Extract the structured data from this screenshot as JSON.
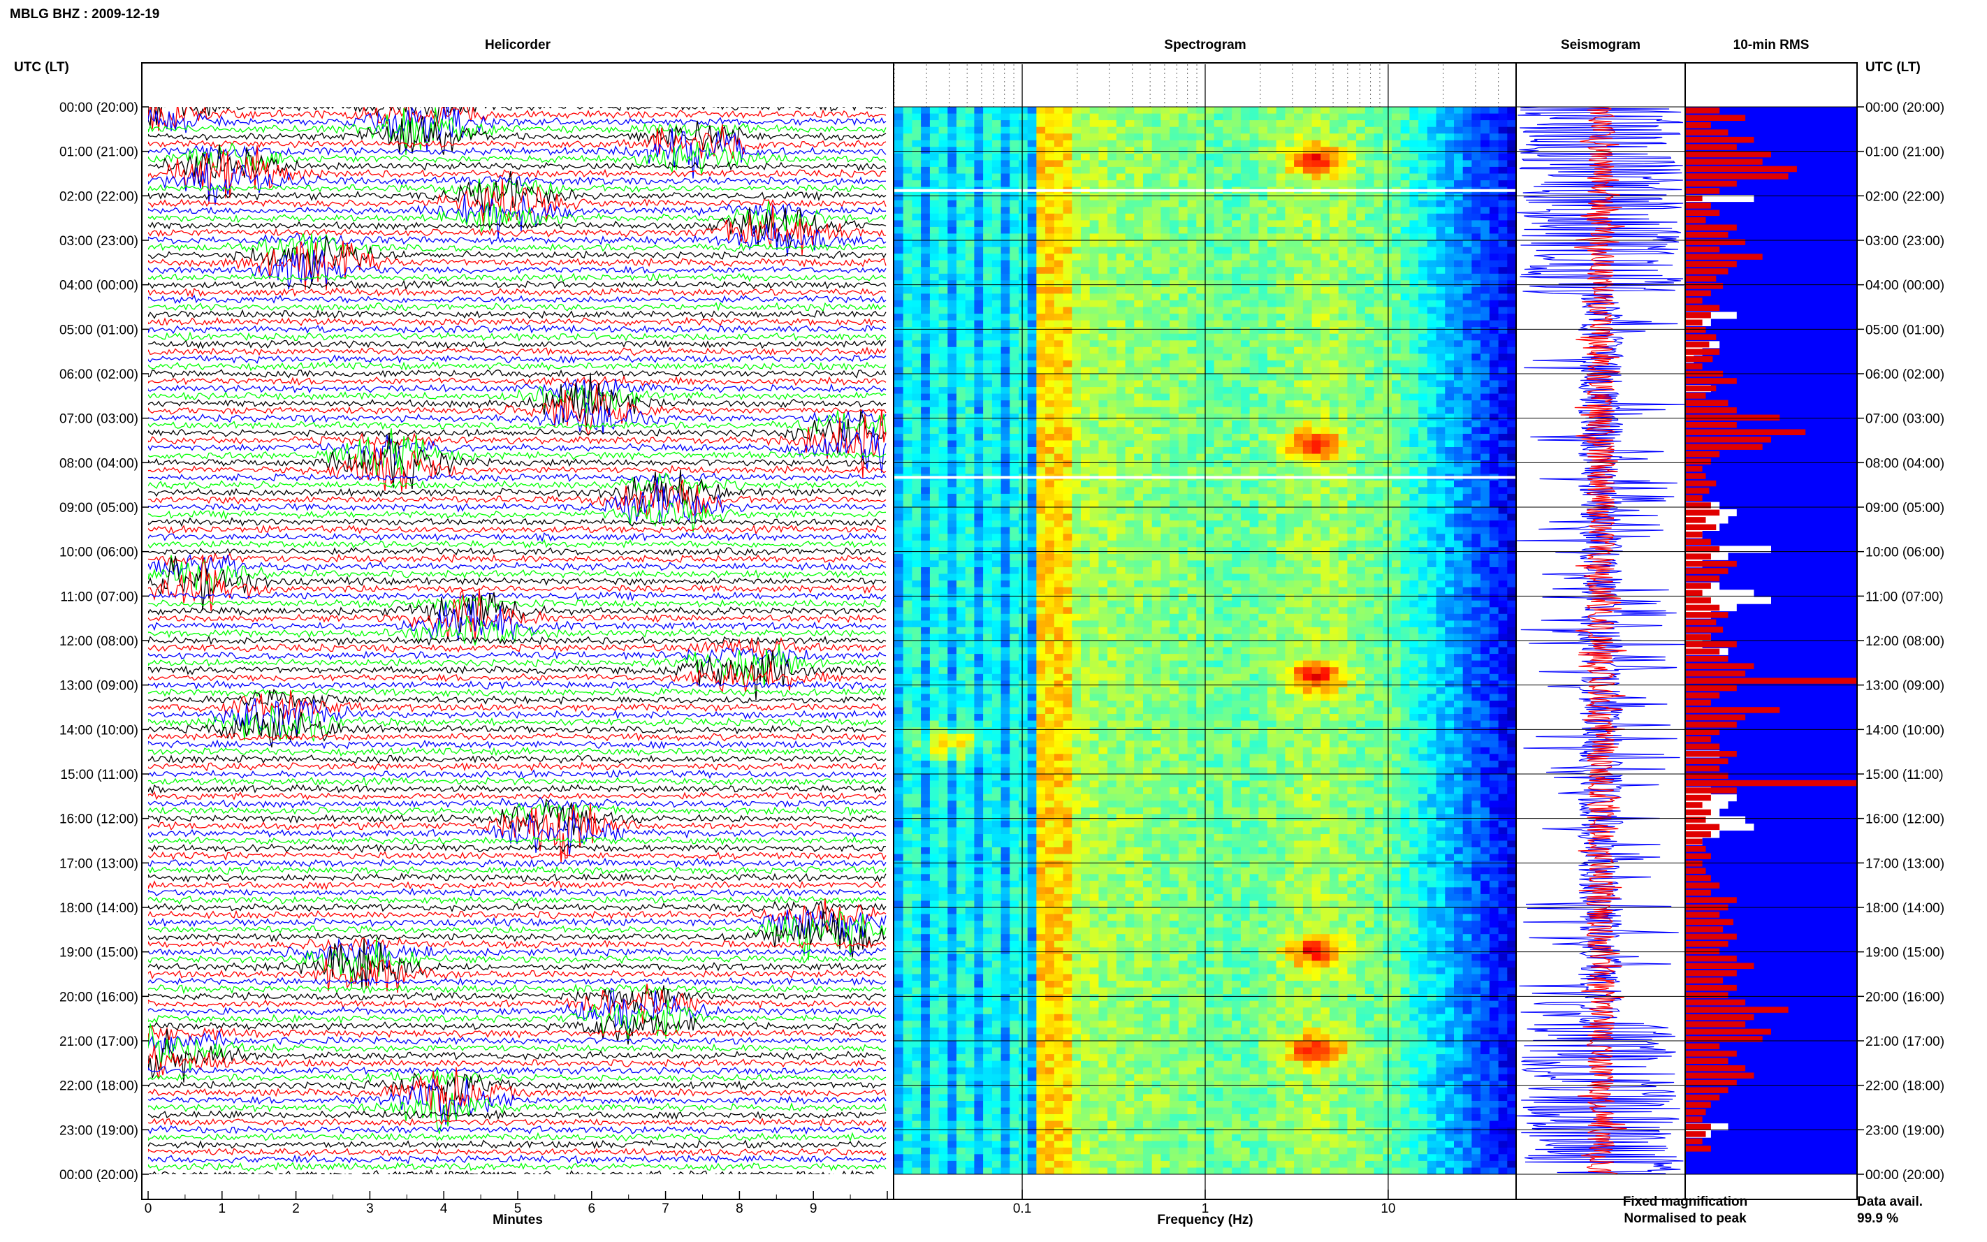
{
  "figure_title": "MBLG BHZ : 2009-12-19",
  "panels": {
    "helicorder": "Helicorder",
    "spectrogram": "Spectrogram",
    "seismogram": "Seismogram",
    "rms": "10-min RMS"
  },
  "left_axis_header": "UTC (LT)",
  "right_axis_header": "UTC (LT)",
  "time_labels": [
    "00:00 (20:00)",
    "01:00 (21:00)",
    "02:00 (22:00)",
    "03:00 (23:00)",
    "04:00 (00:00)",
    "05:00 (01:00)",
    "06:00 (02:00)",
    "07:00 (03:00)",
    "08:00 (04:00)",
    "09:00 (05:00)",
    "10:00 (06:00)",
    "11:00 (07:00)",
    "12:00 (08:00)",
    "13:00 (09:00)",
    "14:00 (10:00)",
    "15:00 (11:00)",
    "16:00 (12:00)",
    "17:00 (13:00)",
    "18:00 (14:00)",
    "19:00 (15:00)",
    "20:00 (16:00)",
    "21:00 (17:00)",
    "22:00 (18:00)",
    "23:00 (19:00)",
    "00:00 (20:00)"
  ],
  "minutes_axis": {
    "label": "Minutes",
    "ticks": [
      "0",
      "1",
      "2",
      "3",
      "4",
      "5",
      "6",
      "7",
      "8",
      "9"
    ]
  },
  "frequency_axis": {
    "label": "Frequency (Hz)",
    "ticks": [
      "0.1",
      "1",
      "10"
    ],
    "scale": "log",
    "range": [
      0.02,
      50
    ]
  },
  "legend": {
    "fixed": "Fixed magnification",
    "normalised": "Normalised to peak",
    "fixed_color": "#0000ff",
    "normalised_color": "#ff0000"
  },
  "data_availability": {
    "label": "Data avail.",
    "value": "99.9 %"
  },
  "colors": {
    "helicorder_traces": [
      "#000000",
      "#ff0000",
      "#0000ff",
      "#00ff00"
    ],
    "rms_fixed": "#0000ff",
    "rms_normalised": "#e00000"
  },
  "chart_data": [
    {
      "type": "heatmap",
      "name": "Helicorder",
      "xlabel": "Minutes",
      "xlim": [
        0,
        10
      ],
      "rows": "10-minute traces, 24 h",
      "event_hours": [
        0.1,
        0.4,
        1.0,
        1.5,
        2.2,
        2.8,
        3.5,
        6.7,
        7.5,
        8.0,
        8.9,
        10.7,
        11.6,
        12.6,
        13.8,
        16.2,
        18.5,
        19.3,
        20.4,
        21.3,
        22.3
      ]
    },
    {
      "type": "heatmap",
      "name": "Spectrogram",
      "xlabel": "Frequency (Hz)",
      "xscale": "log",
      "xlim": [
        0.02,
        50
      ],
      "microseism_peak_hz": 0.14,
      "strong_bands_hz_hours": [
        {
          "hz": 4.0,
          "hour": 1.2
        },
        {
          "hz": 4.0,
          "hour": 7.6
        },
        {
          "hz": 4.0,
          "hour": 12.8
        },
        {
          "hz": 4.0,
          "hour": 19.0
        },
        {
          "hz": 4.0,
          "hour": 21.2
        },
        {
          "hz": 0.04,
          "hour": 14.3
        }
      ]
    },
    {
      "type": "bar",
      "name": "10-min RMS",
      "series": [
        {
          "name": "Fixed magnification",
          "values": [
            1,
            1,
            1,
            1,
            1,
            1,
            1,
            1,
            1,
            1,
            1,
            1,
            0.6,
            1,
            1,
            1,
            1,
            1,
            1,
            1,
            1,
            1,
            1,
            1,
            1,
            1,
            1,
            1,
            0.7,
            0.85,
            1,
            1,
            0.8,
            0.9,
            0.95,
            1,
            1,
            1,
            0.85,
            1,
            1,
            1,
            1,
            1,
            1,
            1,
            1,
            1,
            1,
            1,
            1,
            1,
            1,
            1,
            0.8,
            0.7,
            0.75,
            0.8,
            0.9,
            1,
            0.5,
            0.75,
            0.9,
            1,
            1,
            0.8,
            0.6,
            0.5,
            0.7,
            0.85,
            1,
            1,
            0.85,
            0.9,
            0.75,
            1,
            1,
            1,
            1,
            1,
            1,
            1,
            1,
            1,
            1,
            1,
            1,
            1,
            0.8,
            1,
            1,
            1,
            1,
            0.85,
            0.7,
            0.75,
            0.8,
            0.65,
            0.6,
            0.8,
            0.9,
            1,
            1,
            1,
            1,
            1,
            1,
            1,
            1,
            1,
            1,
            1,
            1,
            1,
            1,
            1,
            1,
            1,
            1,
            1,
            1,
            1,
            1,
            1,
            1,
            1,
            1,
            1,
            1,
            1,
            1,
            1,
            1,
            1,
            1,
            1,
            1,
            1,
            1,
            0.75,
            0.85,
            1,
            1,
            1,
            1,
            1
          ]
        },
        {
          "name": "Normalised to peak",
          "values": [
            0.2,
            0.35,
            0.15,
            0.25,
            0.4,
            0.3,
            0.5,
            0.45,
            0.65,
            0.6,
            0.3,
            0.2,
            0.1,
            0.15,
            0.2,
            0.12,
            0.3,
            0.25,
            0.35,
            0.2,
            0.45,
            0.3,
            0.25,
            0.18,
            0.22,
            0.15,
            0.1,
            0.2,
            0.15,
            0.1,
            0.12,
            0.18,
            0.14,
            0.2,
            0.16,
            0.1,
            0.22,
            0.3,
            0.18,
            0.12,
            0.25,
            0.3,
            0.55,
            0.3,
            0.7,
            0.5,
            0.45,
            0.2,
            0.15,
            0.1,
            0.12,
            0.18,
            0.14,
            0.1,
            0.15,
            0.2,
            0.12,
            0.18,
            0.1,
            0.15,
            0.2,
            0.15,
            0.3,
            0.25,
            0.2,
            0.15,
            0.1,
            0.15,
            0.2,
            0.25,
            0.18,
            0.22,
            0.15,
            0.3,
            0.2,
            0.25,
            0.4,
            0.35,
            1.0,
            0.3,
            0.2,
            0.15,
            0.55,
            0.35,
            0.3,
            0.2,
            0.15,
            0.2,
            0.3,
            0.25,
            0.2,
            0.25,
            1.0,
            0.3,
            0.15,
            0.1,
            0.15,
            0.12,
            0.2,
            0.15,
            0.1,
            0.12,
            0.15,
            0.1,
            0.12,
            0.15,
            0.2,
            0.15,
            0.3,
            0.25,
            0.2,
            0.28,
            0.22,
            0.3,
            0.25,
            0.2,
            0.3,
            0.4,
            0.3,
            0.22,
            0.3,
            0.25,
            0.35,
            0.6,
            0.4,
            0.35,
            0.5,
            0.45,
            0.2,
            0.3,
            0.25,
            0.35,
            0.4,
            0.3,
            0.25,
            0.2,
            0.15,
            0.12,
            0.1,
            0.15,
            0.12,
            0.1,
            0.15
          ]
        }
      ]
    }
  ]
}
